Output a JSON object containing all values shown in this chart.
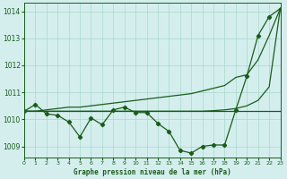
{
  "title": "Graphe pression niveau de la mer (hPa)",
  "background_color": "#d4eeee",
  "grid_color": "#a8d8cc",
  "line_color": "#1a5c1a",
  "xlim": [
    0,
    23
  ],
  "ylim": [
    1008.6,
    1014.3
  ],
  "yticks": [
    1009,
    1010,
    1011,
    1012,
    1013,
    1014
  ],
  "xticks": [
    0,
    1,
    2,
    3,
    4,
    5,
    6,
    7,
    8,
    9,
    10,
    11,
    12,
    13,
    14,
    15,
    16,
    17,
    18,
    19,
    20,
    21,
    22,
    23
  ],
  "series_main_x": [
    0,
    1,
    2,
    3,
    4,
    5,
    6,
    7,
    8,
    9,
    10,
    11,
    12,
    13,
    14,
    15,
    16,
    17,
    18,
    19,
    20,
    21,
    22,
    23
  ],
  "series_main_y": [
    1010.3,
    1010.55,
    1010.2,
    1010.15,
    1009.9,
    1009.35,
    1010.05,
    1009.8,
    1010.35,
    1010.45,
    1010.25,
    1010.25,
    1009.85,
    1009.55,
    1008.85,
    1008.75,
    1009.0,
    1009.05,
    1009.05,
    1010.35,
    1011.6,
    1013.1,
    1013.8,
    1014.1
  ],
  "env_upper_x": [
    0,
    1,
    2,
    3,
    4,
    5,
    6,
    7,
    8,
    9,
    10,
    11,
    12,
    13,
    14,
    15,
    16,
    17,
    18,
    19,
    20,
    21,
    22,
    23
  ],
  "env_upper_y": [
    1010.3,
    1010.3,
    1010.35,
    1010.4,
    1010.45,
    1010.45,
    1010.5,
    1010.55,
    1010.6,
    1010.65,
    1010.7,
    1010.75,
    1010.8,
    1010.85,
    1010.9,
    1010.95,
    1011.05,
    1011.15,
    1011.25,
    1011.55,
    1011.65,
    1012.2,
    1013.1,
    1014.1
  ],
  "env_lower_x": [
    0,
    1,
    2,
    3,
    4,
    5,
    6,
    7,
    8,
    9,
    10,
    11,
    12,
    13,
    14,
    15,
    16,
    17,
    18,
    19,
    20,
    21,
    22,
    23
  ],
  "env_lower_y": [
    1010.3,
    1010.3,
    1010.3,
    1010.3,
    1010.3,
    1010.3,
    1010.3,
    1010.3,
    1010.3,
    1010.3,
    1010.3,
    1010.3,
    1010.3,
    1010.3,
    1010.3,
    1010.3,
    1010.3,
    1010.32,
    1010.35,
    1010.4,
    1010.5,
    1010.7,
    1011.2,
    1014.1
  ],
  "flat_line_y": 1010.3
}
